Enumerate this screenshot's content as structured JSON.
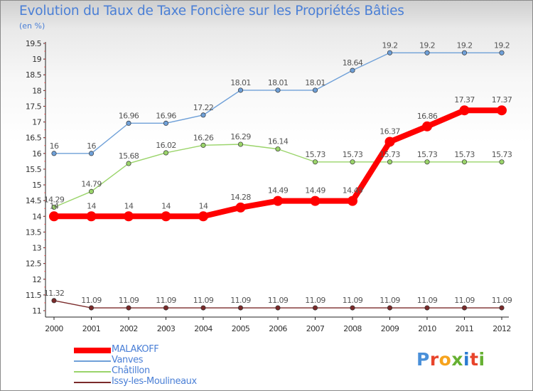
{
  "title": "Evolution du Taux de Taxe Foncière sur les Propriétés Bâties",
  "subtitle": "(en %)",
  "logo": {
    "text": "Proxiti",
    "letter_colors": [
      "#4a90d9",
      "#e8442b",
      "#f6a31d",
      "#66b032",
      "#2a7bd1",
      "#e8442b",
      "#66b032"
    ]
  },
  "chart_data": {
    "type": "line",
    "title": "Evolution du Taux de Taxe Foncière sur les Propriétés Bâties",
    "ylabel": "(en %)",
    "xlabel": "",
    "x": [
      "2000",
      "2001",
      "2002",
      "2003",
      "2004",
      "2005",
      "2006",
      "2007",
      "2008",
      "2009",
      "2010",
      "2011",
      "2012"
    ],
    "ylim": [
      11,
      19.5
    ],
    "yticks": [
      "11",
      "11.5",
      "12",
      "12.5",
      "13",
      "13.5",
      "14",
      "14.5",
      "15",
      "15.5",
      "16",
      "16.5",
      "17",
      "17.5",
      "18",
      "18.5",
      "19",
      "19.5"
    ],
    "grid": false,
    "legend_placement": "bottom-left",
    "series": [
      {
        "name": "MALAKOFF",
        "color": "#ff0000",
        "values": [
          14,
          14,
          14,
          14,
          14,
          14.28,
          14.49,
          14.49,
          14.49,
          16.37,
          16.86,
          17.37,
          17.37
        ],
        "labels": [
          "14",
          "14",
          "14",
          "14",
          "14",
          "14.28",
          "14.49",
          "14.49",
          "14.49",
          "16.37",
          "16.86",
          "17.37",
          "17.37"
        ]
      },
      {
        "name": "Vanves",
        "color": "#6fa0d8",
        "values": [
          16,
          16,
          16.96,
          16.96,
          17.22,
          18.01,
          18.01,
          18.01,
          18.64,
          19.2,
          19.2,
          19.2,
          19.2
        ],
        "labels": [
          "16",
          "16",
          "16.96",
          "16.96",
          "17.22",
          "18.01",
          "18.01",
          "18.01",
          "18.64",
          "19.2",
          "19.2",
          "19.2",
          "19.2"
        ]
      },
      {
        "name": "Châtillon",
        "color": "#9ad46a",
        "values": [
          14.29,
          14.79,
          15.68,
          16.02,
          16.26,
          16.29,
          16.14,
          15.73,
          15.73,
          15.73,
          15.73,
          15.73,
          15.73
        ],
        "labels": [
          "14.29",
          "14.79",
          "15.68",
          "16.02",
          "16.26",
          "16.29",
          "16.14",
          "15.73",
          "15.73",
          "15.73",
          "15.73",
          "15.73",
          "15.73"
        ]
      },
      {
        "name": "Issy-les-Moulineaux",
        "color": "#7a2a2a",
        "values": [
          11.32,
          11.09,
          11.09,
          11.09,
          11.09,
          11.09,
          11.09,
          11.09,
          11.09,
          11.09,
          11.09,
          11.09,
          11.09
        ],
        "labels": [
          "11.32",
          "11.09",
          "11.09",
          "11.09",
          "11.09",
          "11.09",
          "11.09",
          "11.09",
          "11.09",
          "11.09",
          "11.09",
          "11.09",
          "11.09"
        ]
      }
    ]
  }
}
